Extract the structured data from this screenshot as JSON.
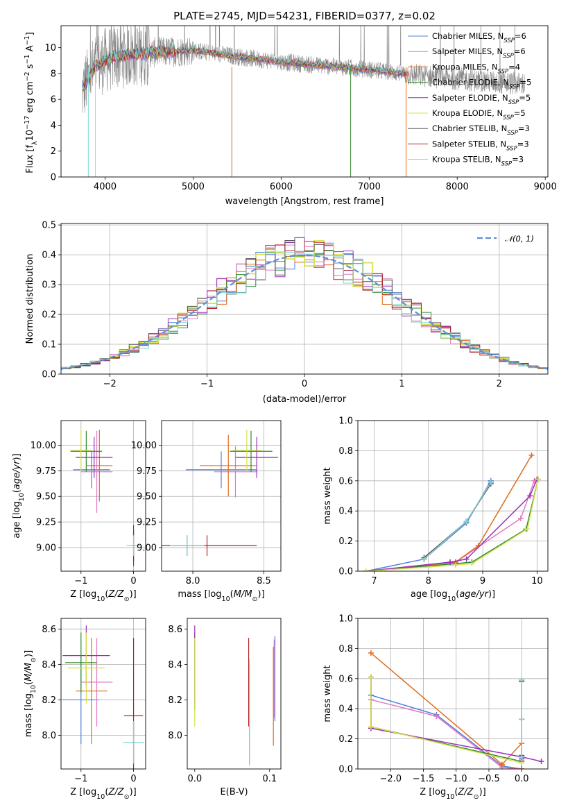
{
  "colors": {
    "chabrier_miles": "#4f7fdc",
    "salpeter_miles": "#e377c2",
    "kroupa_miles": "#e06c1a",
    "chabrier_elodie": "#2f8a2f",
    "salpeter_elodie": "#9b2fb8",
    "kroupa_elodie": "#d6e04a",
    "chabrier_stelib": "#555555",
    "salpeter_stelib": "#b22222",
    "kroupa_stelib": "#7fd6d6",
    "data_spectrum": "#888888",
    "normal_curve": "#5b8fd9"
  },
  "legend": [
    {
      "key": "chabrier_miles",
      "label": "Chabrier MILES, N",
      "n": "=6"
    },
    {
      "key": "salpeter_miles",
      "label": "Salpeter MILES, N",
      "n": "=6"
    },
    {
      "key": "kroupa_miles",
      "label": "Kroupa MILES, N",
      "n": "=4"
    },
    {
      "key": "chabrier_elodie",
      "label": "Chabrier ELODIE, N",
      "n": "=5"
    },
    {
      "key": "salpeter_elodie",
      "label": "Salpeter ELODIE, N",
      "n": "=5"
    },
    {
      "key": "kroupa_elodie",
      "label": "Kroupa ELODIE, N",
      "n": "=5"
    },
    {
      "key": "chabrier_stelib",
      "label": "Chabrier STELIB, N",
      "n": "=3"
    },
    {
      "key": "salpeter_stelib",
      "label": "Salpeter STELIB, N",
      "n": "=3"
    },
    {
      "key": "kroupa_stelib",
      "label": "Kroupa STELIB, N",
      "n": "=3"
    }
  ],
  "chart_data": [
    {
      "type": "line",
      "title": "PLATE=2745, MJD=54231, FIBERID=0377, z=0.02",
      "xlabel": "wavelength [Angstrom, rest frame]",
      "ylabel": "Flux [fλ10⁻¹⁷ erg cm⁻² s⁻¹ A⁻¹]",
      "xlim": [
        3500,
        9030
      ],
      "ylim": [
        0,
        11.7
      ],
      "xticks": [
        4000,
        5000,
        6000,
        7000,
        8000,
        9000
      ],
      "yticks": [
        0,
        2,
        4,
        6,
        8,
        10
      ],
      "data_range": [
        3740,
        8770
      ],
      "model_range": [
        3740,
        7450
      ],
      "continuum": {
        "x": [
          3740,
          3800,
          3900,
          4000,
          4100,
          4300,
          4500,
          4800,
          5000,
          5500,
          6000,
          6500,
          7000,
          7500,
          8000,
          8500,
          8770
        ],
        "y": [
          6.5,
          7.5,
          8.6,
          9.0,
          9.3,
          9.5,
          9.6,
          9.7,
          9.8,
          9.3,
          8.9,
          8.6,
          8.3,
          7.9,
          7.6,
          7.3,
          7.2
        ]
      }
    },
    {
      "type": "line",
      "xlabel": "(data-model)/error",
      "ylabel": "Normed distribution",
      "xlim": [
        -2.5,
        2.5
      ],
      "ylim": [
        0,
        0.505
      ],
      "xticks": [
        -2,
        -1,
        0,
        1,
        2
      ],
      "yticks": [
        0,
        0.1,
        0.2,
        0.3,
        0.4,
        0.5
      ],
      "legend": "𝒩(0, 1)",
      "bin_width": 0.1,
      "curve": "gaussian mean 0 sigma 1"
    },
    {
      "type": "scatter",
      "xlabel": "Z [log10(Z/Z⊙)]",
      "ylabel": "age [log10(age/yr)]",
      "xlim": [
        -1.38,
        0.23
      ],
      "ylim": [
        8.77,
        10.24
      ],
      "xticks": [
        -1,
        0
      ],
      "yticks": [
        9.0,
        9.25,
        9.5,
        9.75,
        10.0
      ],
      "points": [
        {
          "key": "chabrier_miles",
          "x": -0.8,
          "xerr": 0.35,
          "y": 9.76,
          "yerr": 0.18
        },
        {
          "key": "salpeter_miles",
          "x": -0.7,
          "xerr": 0.3,
          "y": 9.74,
          "yerr": 0.4
        },
        {
          "key": "kroupa_miles",
          "x": -0.65,
          "xerr": 0.25,
          "y": 9.8,
          "yerr": 0.35
        },
        {
          "key": "chabrier_elodie",
          "x": -0.9,
          "xerr": 0.3,
          "y": 9.94,
          "yerr": 0.2
        },
        {
          "key": "salpeter_elodie",
          "x": -0.75,
          "xerr": 0.35,
          "y": 9.88,
          "yerr": 0.2
        },
        {
          "key": "kroupa_elodie",
          "x": -1.0,
          "xerr": 0.2,
          "y": 9.95,
          "yerr": 0.2
        },
        {
          "key": "chabrier_stelib",
          "x": 0.0,
          "xerr": 0.03,
          "y": 9.02,
          "yerr": 0.2
        },
        {
          "key": "salpeter_stelib",
          "x": 0.0,
          "xerr": 0.03,
          "y": 9.02,
          "yerr": 0.15
        },
        {
          "key": "kroupa_stelib",
          "x": 0.0,
          "xerr": 0.13,
          "y": 9.02,
          "yerr": 0.1
        }
      ]
    },
    {
      "type": "scatter",
      "xlabel": "mass [log10(M/M⊙)]",
      "xlim": [
        7.78,
        8.62
      ],
      "ylim": [
        8.77,
        10.24
      ],
      "xticks": [
        8.0,
        8.5
      ],
      "yticks": [
        9.0,
        9.25,
        9.5,
        9.75,
        10.0
      ],
      "points": [
        {
          "key": "chabrier_miles",
          "x": 8.2,
          "xerr": 0.25,
          "y": 9.76,
          "yerr": 0.18
        },
        {
          "key": "salpeter_miles",
          "x": 8.3,
          "xerr": 0.15,
          "y": 9.74,
          "yerr": 0.25
        },
        {
          "key": "kroupa_miles",
          "x": 8.25,
          "xerr": 0.2,
          "y": 9.8,
          "yerr": 0.3
        },
        {
          "key": "chabrier_elodie",
          "x": 8.41,
          "xerr": 0.15,
          "y": 9.94,
          "yerr": 0.2
        },
        {
          "key": "salpeter_elodie",
          "x": 8.45,
          "xerr": 0.15,
          "y": 9.88,
          "yerr": 0.2
        },
        {
          "key": "kroupa_elodie",
          "x": 8.38,
          "xerr": 0.1,
          "y": 9.95,
          "yerr": 0.2
        },
        {
          "key": "chabrier_stelib",
          "x": 7.96,
          "xerr": 0.1,
          "y": 9.02,
          "yerr": 0.1
        },
        {
          "key": "salpeter_stelib",
          "x": 8.1,
          "xerr": 0.35,
          "y": 9.02,
          "yerr": 0.1
        },
        {
          "key": "kroupa_stelib",
          "x": 7.96,
          "xerr": 0.12,
          "y": 9.02,
          "yerr": 0.1
        }
      ]
    },
    {
      "type": "line",
      "xlabel": "age [log10(age/yr)]",
      "ylabel": "mass weight",
      "xlim": [
        6.7,
        10.2
      ],
      "ylim": [
        0,
        1.0
      ],
      "xticks": [
        7,
        8,
        9,
        10
      ],
      "yticks": [
        0.0,
        0.2,
        0.4,
        0.6,
        0.8,
        1.0
      ],
      "series": [
        {
          "key": "chabrier_miles",
          "x": [
            6.85,
            7.92,
            8.7,
            9.15
          ],
          "y": [
            0.0,
            0.08,
            0.32,
            0.6
          ]
        },
        {
          "key": "salpeter_miles",
          "x": [
            6.85,
            8.5,
            9.7,
            9.95
          ],
          "y": [
            0.0,
            0.06,
            0.35,
            0.6
          ]
        },
        {
          "key": "kroupa_miles",
          "x": [
            6.85,
            8.5,
            8.92,
            9.9
          ],
          "y": [
            0.0,
            0.06,
            0.17,
            0.77
          ]
        },
        {
          "key": "chabrier_elodie",
          "x": [
            6.85,
            8.5,
            8.8,
            9.8,
            10.02
          ],
          "y": [
            0.0,
            0.05,
            0.06,
            0.28,
            0.61
          ]
        },
        {
          "key": "salpeter_elodie",
          "x": [
            6.85,
            8.4,
            8.7,
            9.87,
            10.0
          ],
          "y": [
            0.0,
            0.06,
            0.08,
            0.5,
            0.61
          ]
        },
        {
          "key": "kroupa_elodie",
          "x": [
            6.85,
            8.5,
            8.8,
            9.82,
            10.02
          ],
          "y": [
            0.0,
            0.04,
            0.05,
            0.28,
            0.61
          ]
        },
        {
          "key": "chabrier_stelib",
          "x": [
            7.92,
            8.7,
            9.15
          ],
          "y": [
            0.09,
            0.33,
            0.58
          ]
        },
        {
          "key": "salpeter_stelib",
          "x": [
            7.92,
            8.7,
            9.15
          ],
          "y": [
            0.08,
            0.33,
            0.59
          ]
        },
        {
          "key": "kroupa_stelib",
          "x": [
            7.92,
            8.7,
            9.15
          ],
          "y": [
            0.08,
            0.33,
            0.59
          ]
        }
      ]
    },
    {
      "type": "scatter",
      "xlabel": "Z [log10(Z/Z⊙)]",
      "ylabel": "mass [log10(M/M⊙)]",
      "xlim": [
        -1.38,
        0.23
      ],
      "ylim": [
        7.81,
        8.66
      ],
      "xticks": [
        -1,
        0
      ],
      "yticks": [
        8.0,
        8.2,
        8.4,
        8.6
      ],
      "points": [
        {
          "key": "chabrier_miles",
          "x": -1.0,
          "xerr": 0.35,
          "y": 8.2,
          "yerr": 0.25
        },
        {
          "key": "salpeter_miles",
          "x": -0.7,
          "xerr": 0.3,
          "y": 8.3,
          "yerr": 0.25
        },
        {
          "key": "kroupa_miles",
          "x": -0.8,
          "xerr": 0.3,
          "y": 8.25,
          "yerr": 0.3
        },
        {
          "key": "chabrier_elodie",
          "x": -1.0,
          "xerr": 0.3,
          "y": 8.41,
          "yerr": 0.17
        },
        {
          "key": "salpeter_elodie",
          "x": -0.9,
          "xerr": 0.45,
          "y": 8.45,
          "yerr": 0.17
        },
        {
          "key": "kroupa_elodie",
          "x": -0.9,
          "xerr": 0.35,
          "y": 8.38,
          "yerr": 0.2
        },
        {
          "key": "chabrier_stelib",
          "x": 0.0,
          "xerr": 0.03,
          "y": 7.96,
          "yerr": 0.12
        },
        {
          "key": "salpeter_stelib",
          "x": 0.0,
          "xerr": 0.18,
          "y": 8.11,
          "yerr": 0.44
        },
        {
          "key": "kroupa_stelib",
          "x": 0.0,
          "xerr": 0.2,
          "y": 7.96,
          "yerr": 0.12
        }
      ]
    },
    {
      "type": "scatter",
      "xlabel": "E(B-V)",
      "xlim": [
        -0.01,
        0.115
      ],
      "ylim": [
        7.81,
        8.66
      ],
      "xticks": [
        0.0,
        0.1
      ],
      "yticks": [
        8.0,
        8.2,
        8.4,
        8.6
      ],
      "points": [
        {
          "key": "chabrier_miles",
          "x": 0.107,
          "y": 8.32,
          "yerr": 0.24
        },
        {
          "key": "salpeter_miles",
          "x": 0.106,
          "y": 8.32,
          "yerr": 0.22
        },
        {
          "key": "kroupa_miles",
          "x": 0.105,
          "y": 8.22,
          "yerr": 0.28
        },
        {
          "key": "chabrier_elodie",
          "x": 0.0,
          "y": 8.36,
          "yerr": 0.22
        },
        {
          "key": "salpeter_elodie",
          "x": 0.0,
          "y": 8.4,
          "yerr": 0.22
        },
        {
          "key": "kroupa_elodie",
          "x": 0.0,
          "y": 8.3,
          "yerr": 0.25
        },
        {
          "key": "chabrier_stelib",
          "x": 0.073,
          "y": 8.12,
          "yerr": 0.28
        },
        {
          "key": "salpeter_stelib",
          "x": 0.072,
          "y": 8.3,
          "yerr": 0.25
        },
        {
          "key": "kroupa_stelib",
          "x": 0.073,
          "y": 8.13,
          "yerr": 0.3
        }
      ]
    },
    {
      "type": "line",
      "xlabel": "Z [log10(Z/Z⊙)]",
      "ylabel": "mass weight",
      "xlim": [
        -2.5,
        0.4
      ],
      "ylim": [
        0,
        1.0
      ],
      "xticks": [
        -2.0,
        -1.5,
        -1.0,
        -0.5,
        0.0
      ],
      "yticks": [
        0.0,
        0.2,
        0.4,
        0.6,
        0.8,
        1.0
      ],
      "series": [
        {
          "key": "chabrier_miles",
          "x": [
            -2.3,
            -1.3,
            -0.3,
            0.0,
            0.0
          ],
          "y": [
            0.49,
            0.36,
            0.02,
            0.0,
            0.07
          ]
        },
        {
          "key": "salpeter_miles",
          "x": [
            -2.3,
            -1.3,
            -0.3,
            0.0,
            0.0
          ],
          "y": [
            0.46,
            0.35,
            0.01,
            0.0,
            0.06
          ]
        },
        {
          "key": "kroupa_miles",
          "x": [
            -2.3,
            -0.3,
            0.0,
            0.0
          ],
          "y": [
            0.77,
            0.03,
            0.17,
            0.0
          ]
        },
        {
          "key": "chabrier_elodie",
          "x": [
            -2.3,
            -2.3,
            0.0
          ],
          "y": [
            0.61,
            0.28,
            0.05
          ]
        },
        {
          "key": "salpeter_elodie",
          "x": [
            -2.3,
            -2.3,
            0.0,
            0.3
          ],
          "y": [
            0.61,
            0.27,
            0.08,
            0.05
          ]
        },
        {
          "key": "kroupa_elodie",
          "x": [
            -2.3,
            -2.3,
            0.0
          ],
          "y": [
            0.61,
            0.28,
            0.04
          ]
        },
        {
          "key": "chabrier_stelib",
          "x": [
            0.0,
            0.0,
            0.0
          ],
          "y": [
            0.58,
            0.33,
            0.09
          ]
        },
        {
          "key": "salpeter_stelib",
          "x": [
            0.0,
            0.0,
            0.0
          ],
          "y": [
            0.59,
            0.33,
            0.08
          ]
        },
        {
          "key": "kroupa_stelib",
          "x": [
            0.0,
            0.0,
            0.0
          ],
          "y": [
            0.59,
            0.33,
            0.08
          ]
        }
      ]
    }
  ]
}
